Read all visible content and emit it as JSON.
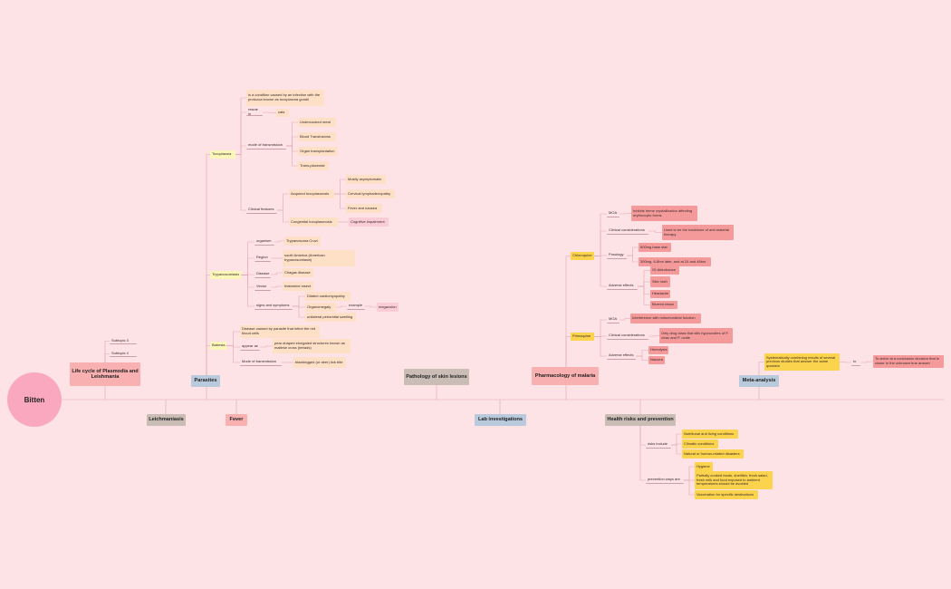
{
  "nodes": [
    {
      "label": "Bitten"
    },
    {
      "label": "Life cycle of Plasmodia and Leishmania"
    },
    {
      "label": "Subtopic 3"
    },
    {
      "label": "Subtopic 4"
    },
    {
      "label": "Parasites"
    },
    {
      "label": "Toxoplasma"
    },
    {
      "label": "is a condition caused by an infection with the protozoa known as toxoplasma gondii"
    },
    {
      "label": "reside in"
    },
    {
      "label": "cats"
    },
    {
      "label": "mode of transmission"
    },
    {
      "label": "Undercooked meat"
    },
    {
      "label": "Blood Transfusions"
    },
    {
      "label": "Organ transplantation"
    },
    {
      "label": "Trans-placental"
    },
    {
      "label": "Clinical features"
    },
    {
      "label": "Acquired toxoplasmosis"
    },
    {
      "label": "Mostly asymptomatic"
    },
    {
      "label": "Cervical lymphadenopathy"
    },
    {
      "label": "Fever and nausea"
    },
    {
      "label": "Congenital toxoplasmosis"
    },
    {
      "label": "Cognitive impairment"
    },
    {
      "label": "Trypanosomiasis"
    },
    {
      "label": "organism"
    },
    {
      "label": "Trypanosoma Cruzi"
    },
    {
      "label": "Region"
    },
    {
      "label": "south America (American trypanosomiasis)"
    },
    {
      "label": "Disease"
    },
    {
      "label": "Chagas disease"
    },
    {
      "label": "Vector"
    },
    {
      "label": "triatomine insect"
    },
    {
      "label": "signs and symptoms"
    },
    {
      "label": "Dilated cardiomyopathy"
    },
    {
      "label": "Organomegaly"
    },
    {
      "label": "unilateral periorbital swelling"
    },
    {
      "label": "example"
    },
    {
      "label": "megacolon"
    },
    {
      "label": "Babesia"
    },
    {
      "label": "Disease caused by parasite that infect the red blood cells"
    },
    {
      "label": "appear as"
    },
    {
      "label": "pear-shaped elongated structures known as maltese cross (tetrads)"
    },
    {
      "label": "Mode of transmission"
    },
    {
      "label": "blacklegged (or deer) tick bite"
    },
    {
      "label": "Pathology of skin lesions"
    },
    {
      "label": "Pharmacology of malaria"
    },
    {
      "label": "Chloroquine"
    },
    {
      "label": "MOA"
    },
    {
      "label": "Inhibits heme crystallization affecting erythrocytic forms"
    },
    {
      "label": "Clinical considerations"
    },
    {
      "label": "Used to be the backbone of anti-malarial therapy"
    },
    {
      "label": "Posology"
    },
    {
      "label": "600mg base stat"
    },
    {
      "label": "300mg, 6-8hrs later, and at 24 and 48hrs"
    },
    {
      "label": "Adverse effects"
    },
    {
      "label": "GI disturbance"
    },
    {
      "label": "Skin rash"
    },
    {
      "label": "Headache"
    },
    {
      "label": "Blurred vision"
    },
    {
      "label": "Primaquine"
    },
    {
      "label": "MOA"
    },
    {
      "label": "Interference with mitochondrial function"
    },
    {
      "label": "Clinical considerations"
    },
    {
      "label": "Only drug class that kills hypnozoites of P. vivax and P. ovale"
    },
    {
      "label": "Adverse effects"
    },
    {
      "label": "Hemolysis"
    },
    {
      "label": "Nausea"
    },
    {
      "label": "Meta-analysis"
    },
    {
      "label": "Systematically combining results of several previous studies that answer the same question"
    },
    {
      "label": "to"
    },
    {
      "label": "To arrive at a conclusion decision that is closer to the unknown true answer"
    },
    {
      "label": "Leichmaniasis"
    },
    {
      "label": "Fever"
    },
    {
      "label": "Lab investigations"
    },
    {
      "label": "Health risks and prevention"
    },
    {
      "label": "risks include"
    },
    {
      "label": "Nutritional and living conditions"
    },
    {
      "label": "Climatic conditions"
    },
    {
      "label": "Natural or human-related disasters"
    },
    {
      "label": "prevention ways are"
    },
    {
      "label": "Hygiene"
    },
    {
      "label": "Partially cooked foods, shellfish, fresh salad, fresh milk and food exposed to ambient temperatures should be avoided"
    },
    {
      "label": "Vaccination for specific destinations"
    }
  ]
}
